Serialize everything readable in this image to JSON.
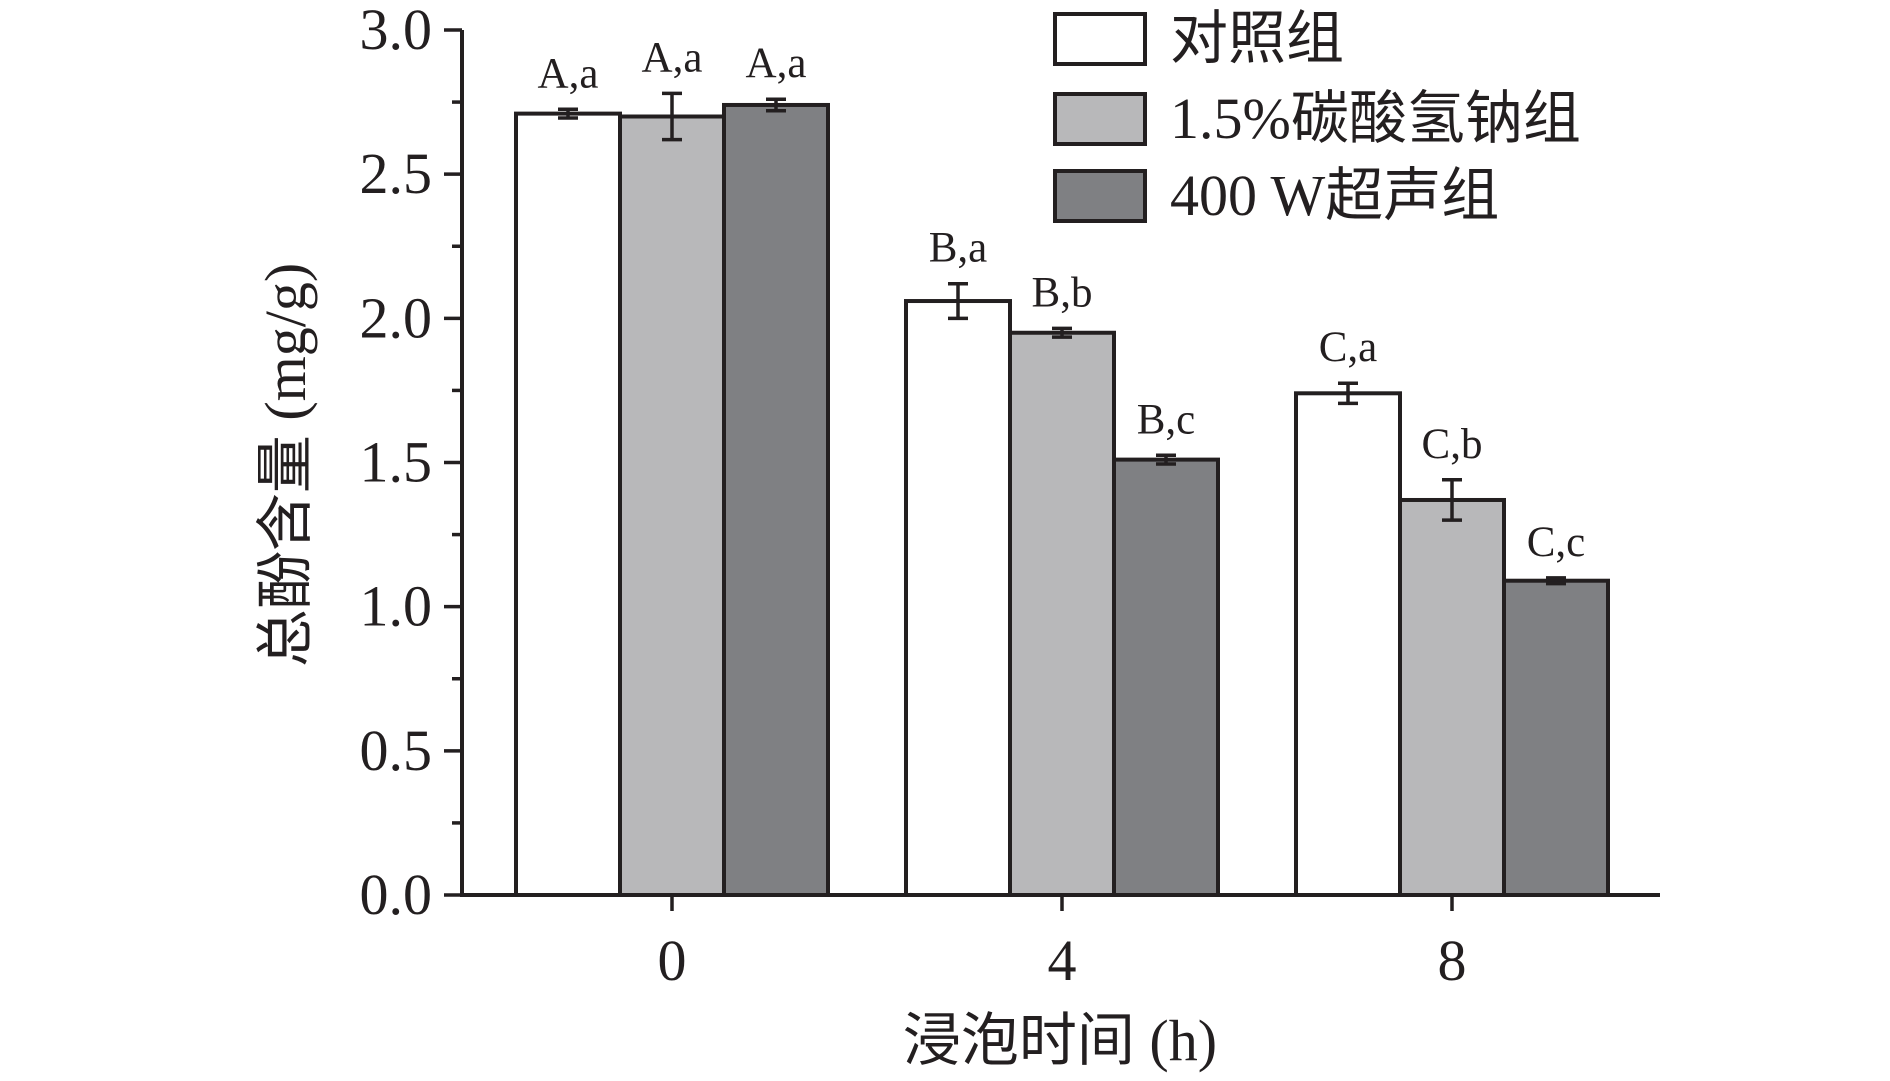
{
  "chart_data": {
    "type": "bar",
    "xlabel": "浸泡时间 (h)",
    "ylabel": "总酚含量 (mg/g)",
    "categories": [
      "0",
      "4",
      "8"
    ],
    "ylim": [
      0,
      3.0
    ],
    "yticks": [
      "0.0",
      "0.5",
      "1.0",
      "1.5",
      "2.0",
      "2.5",
      "3.0"
    ],
    "grid": false,
    "legend_position": "top-right",
    "series": [
      {
        "name": "对照组",
        "color": "#ffffff",
        "values": [
          2.71,
          2.06,
          1.74
        ],
        "errors": [
          0.015,
          0.06,
          0.035
        ],
        "labels": [
          "A,a",
          "B,a",
          "C,a"
        ]
      },
      {
        "name": "1.5%碳酸氢钠组",
        "color": "#b8b8ba",
        "values": [
          2.7,
          1.95,
          1.37
        ],
        "errors": [
          0.08,
          0.015,
          0.07
        ],
        "labels": [
          "A,a",
          "B,b",
          "C,b"
        ]
      },
      {
        "name": "400 W超声组",
        "color": "#7f8083",
        "values": [
          2.74,
          1.51,
          1.09
        ],
        "errors": [
          0.02,
          0.015,
          0.01
        ],
        "labels": [
          "A,a",
          "B,c",
          "C,c"
        ]
      }
    ]
  }
}
